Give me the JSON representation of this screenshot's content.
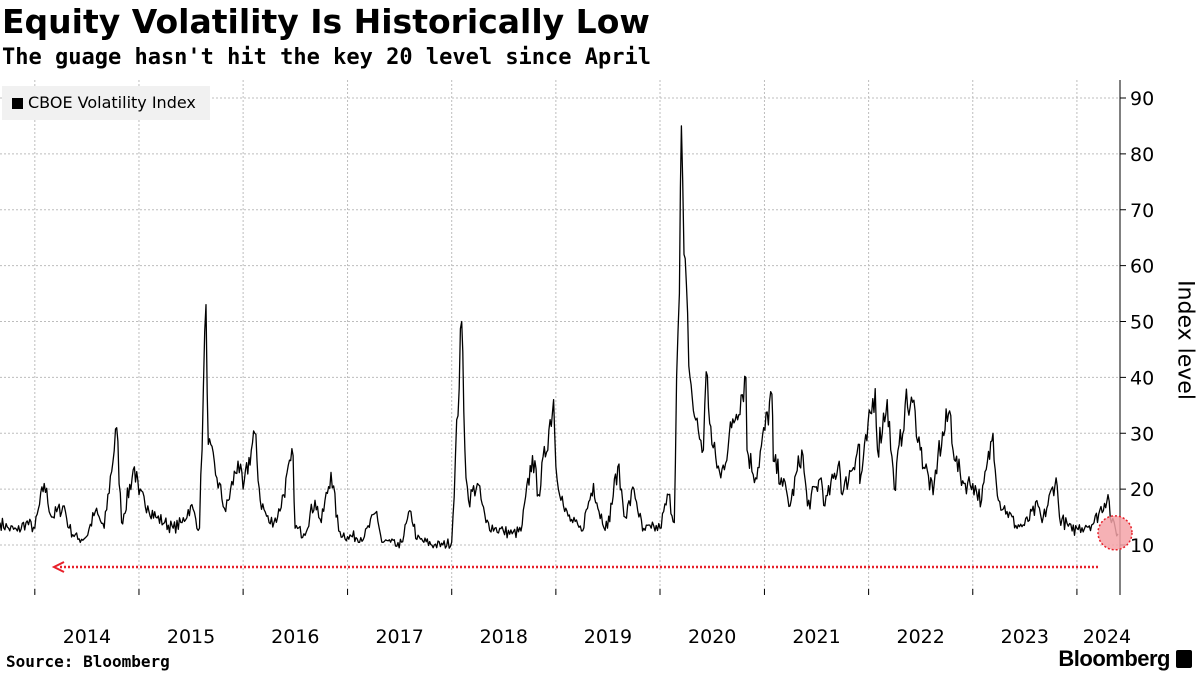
{
  "header": {
    "title": "Equity Volatility Is Historically Low",
    "subtitle": "The guage hasn't hit the key 20 level since April"
  },
  "footer": {
    "source": "Source: Bloomberg",
    "brand": "Bloomberg"
  },
  "colors": {
    "line": "#000000",
    "grid": "#bdbdbd",
    "annotation": "#e8202a",
    "highlight_fill": "#f4a3a8"
  },
  "chart_data": {
    "type": "line",
    "title": "Equity Volatility Is Historically Low",
    "subtitle": "The guage hasn't hit the key 20 level since April",
    "ylabel": "Index level",
    "xlabel": "",
    "ylim": [
      0,
      90
    ],
    "x_range": [
      "2013-09-01",
      "2024-05-31"
    ],
    "yticks": [
      10,
      20,
      30,
      40,
      50,
      60,
      70,
      80,
      90
    ],
    "xtick_labels": [
      "2014",
      "2015",
      "2016",
      "2017",
      "2018",
      "2019",
      "2020",
      "2021",
      "2022",
      "2023",
      "2024"
    ],
    "grid": true,
    "legend_position": "top-left",
    "series": [
      {
        "name": "CBOE Volatility Index",
        "points": [
          [
            "2013-09-01",
            14
          ],
          [
            "2013-10-01",
            13
          ],
          [
            "2013-11-01",
            12.5
          ],
          [
            "2013-12-01",
            14
          ],
          [
            "2014-01-01",
            13
          ],
          [
            "2014-02-03",
            21
          ],
          [
            "2014-03-01",
            15
          ],
          [
            "2014-04-14",
            17
          ],
          [
            "2014-05-01",
            13
          ],
          [
            "2014-06-01",
            11
          ],
          [
            "2014-07-01",
            11.5
          ],
          [
            "2014-08-01",
            16
          ],
          [
            "2014-09-01",
            13
          ],
          [
            "2014-10-15",
            31
          ],
          [
            "2014-11-01",
            14
          ],
          [
            "2014-12-16",
            24
          ],
          [
            "2015-01-01",
            19
          ],
          [
            "2015-02-01",
            17
          ],
          [
            "2015-03-01",
            15
          ],
          [
            "2015-04-01",
            14
          ],
          [
            "2015-05-01",
            13
          ],
          [
            "2015-06-01",
            14
          ],
          [
            "2015-07-01",
            17
          ],
          [
            "2015-08-01",
            13
          ],
          [
            "2015-08-24",
            53
          ],
          [
            "2015-09-01",
            28
          ],
          [
            "2015-10-01",
            22
          ],
          [
            "2015-11-01",
            16
          ],
          [
            "2015-12-14",
            25
          ],
          [
            "2016-01-01",
            20
          ],
          [
            "2016-02-11",
            30
          ],
          [
            "2016-03-01",
            18
          ],
          [
            "2016-04-01",
            14
          ],
          [
            "2016-05-01",
            15
          ],
          [
            "2016-06-24",
            26
          ],
          [
            "2016-07-01",
            13
          ],
          [
            "2016-08-01",
            12
          ],
          [
            "2016-09-09",
            18
          ],
          [
            "2016-10-01",
            14
          ],
          [
            "2016-11-04",
            23
          ],
          [
            "2016-12-01",
            12.5
          ],
          [
            "2017-01-01",
            11.5
          ],
          [
            "2017-03-01",
            11.5
          ],
          [
            "2017-04-13",
            16
          ],
          [
            "2017-05-01",
            10.5
          ],
          [
            "2017-06-01",
            10.5
          ],
          [
            "2017-07-01",
            9.5
          ],
          [
            "2017-08-11",
            16
          ],
          [
            "2017-09-01",
            11
          ],
          [
            "2017-11-01",
            10
          ],
          [
            "2017-12-01",
            10
          ],
          [
            "2018-01-01",
            10.5
          ],
          [
            "2018-02-05",
            50
          ],
          [
            "2018-02-20",
            22
          ],
          [
            "2018-03-01",
            18
          ],
          [
            "2018-04-01",
            21
          ],
          [
            "2018-05-01",
            14
          ],
          [
            "2018-06-01",
            13
          ],
          [
            "2018-07-01",
            12.5
          ],
          [
            "2018-08-01",
            12
          ],
          [
            "2018-09-01",
            12.5
          ],
          [
            "2018-10-11",
            26
          ],
          [
            "2018-11-01",
            19
          ],
          [
            "2018-12-24",
            36
          ],
          [
            "2019-01-01",
            24
          ],
          [
            "2019-02-01",
            16
          ],
          [
            "2019-03-01",
            14
          ],
          [
            "2019-04-01",
            12.5
          ],
          [
            "2019-05-13",
            21
          ],
          [
            "2019-06-01",
            16
          ],
          [
            "2019-07-01",
            13
          ],
          [
            "2019-08-06",
            24
          ],
          [
            "2019-09-01",
            15
          ],
          [
            "2019-10-02",
            20
          ],
          [
            "2019-11-01",
            12.5
          ],
          [
            "2019-12-01",
            13
          ],
          [
            "2020-01-01",
            13
          ],
          [
            "2020-01-31",
            19
          ],
          [
            "2020-02-20",
            14
          ],
          [
            "2020-02-28",
            40
          ],
          [
            "2020-03-09",
            55
          ],
          [
            "2020-03-16",
            85
          ],
          [
            "2020-03-25",
            62
          ],
          [
            "2020-04-15",
            40
          ],
          [
            "2020-05-01",
            33
          ],
          [
            "2020-06-01",
            27
          ],
          [
            "2020-06-11",
            41
          ],
          [
            "2020-07-01",
            28
          ],
          [
            "2020-08-01",
            22
          ],
          [
            "2020-09-08",
            31
          ],
          [
            "2020-10-28",
            40
          ],
          [
            "2020-11-01",
            27
          ],
          [
            "2020-12-01",
            22
          ],
          [
            "2021-01-27",
            37
          ],
          [
            "2021-02-01",
            25
          ],
          [
            "2021-03-01",
            22
          ],
          [
            "2021-04-01",
            17
          ],
          [
            "2021-05-12",
            27
          ],
          [
            "2021-06-01",
            17
          ],
          [
            "2021-07-19",
            22
          ],
          [
            "2021-08-01",
            17
          ],
          [
            "2021-09-20",
            25
          ],
          [
            "2021-10-01",
            19
          ],
          [
            "2021-11-30",
            28
          ],
          [
            "2021-12-01",
            21
          ],
          [
            "2022-01-24",
            38
          ],
          [
            "2022-02-01",
            27
          ],
          [
            "2022-03-07",
            36
          ],
          [
            "2022-04-01",
            20
          ],
          [
            "2022-05-09",
            35
          ],
          [
            "2022-06-13",
            34
          ],
          [
            "2022-07-01",
            27
          ],
          [
            "2022-08-15",
            19
          ],
          [
            "2022-09-01",
            26
          ],
          [
            "2022-10-12",
            34
          ],
          [
            "2022-11-01",
            25
          ],
          [
            "2022-12-01",
            21
          ],
          [
            "2023-01-01",
            21
          ],
          [
            "2023-02-01",
            18
          ],
          [
            "2023-03-13",
            30
          ],
          [
            "2023-04-01",
            18
          ],
          [
            "2023-05-01",
            16
          ],
          [
            "2023-06-01",
            13.5
          ],
          [
            "2023-07-01",
            13.5
          ],
          [
            "2023-08-18",
            17
          ],
          [
            "2023-09-01",
            14
          ],
          [
            "2023-10-20",
            22
          ],
          [
            "2023-11-01",
            15
          ],
          [
            "2023-12-15",
            12.5
          ],
          [
            "2024-01-01",
            13
          ],
          [
            "2024-02-01",
            13.5
          ],
          [
            "2024-03-01",
            14
          ],
          [
            "2024-04-19",
            19
          ],
          [
            "2024-05-01",
            14
          ],
          [
            "2024-05-24",
            12
          ]
        ]
      }
    ]
  }
}
